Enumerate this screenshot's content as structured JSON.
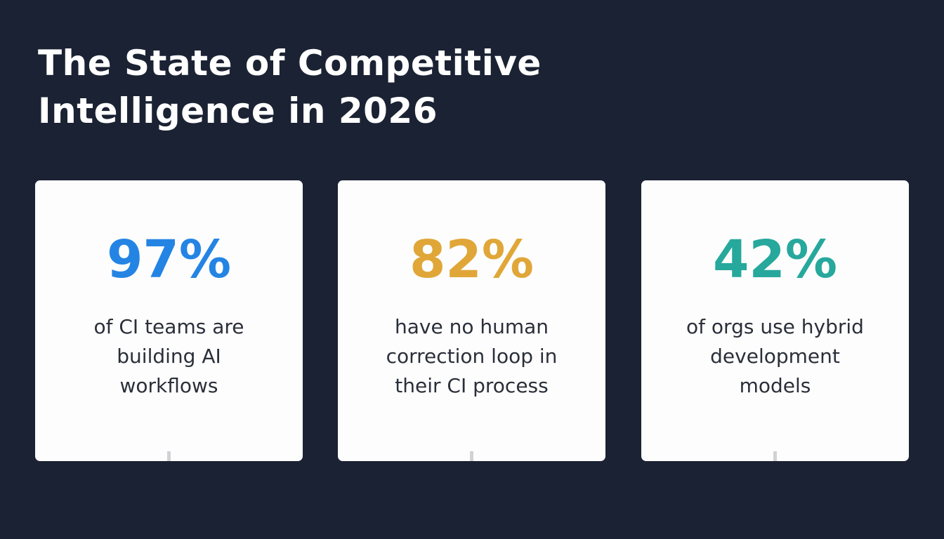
{
  "title": {
    "line1": "The State of Competitive",
    "line2": "Intelligence in 2026"
  },
  "stats": [
    {
      "value": "97%",
      "color": "#2484e4",
      "description": "of CI teams are building AI workflows"
    },
    {
      "value": "82%",
      "color": "#e0a738",
      "description": "have no human correction loop in their CI process"
    },
    {
      "value": "42%",
      "color": "#27a89c",
      "description": "of orgs use hybrid development models"
    }
  ]
}
